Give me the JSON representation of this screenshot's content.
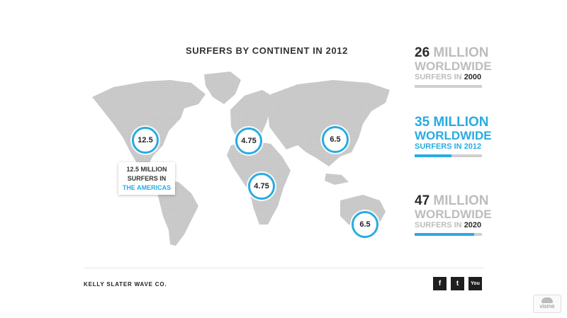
{
  "chart_data": {
    "type": "map",
    "title": "SURFERS BY CONTINENT IN 2012",
    "regions": [
      {
        "name": "North America",
        "value": "12.5"
      },
      {
        "name": "Europe",
        "value": "4.75"
      },
      {
        "name": "Asia",
        "value": "6.5"
      },
      {
        "name": "Africa",
        "value": "4.75"
      },
      {
        "name": "Australia",
        "value": "6.5"
      }
    ],
    "callout": {
      "line1": "12.5 MILLION",
      "line2": "SURFERS IN",
      "line3": "THE AMERICAS"
    },
    "stats": [
      {
        "number": "26",
        "unit": "MILLION",
        "line2": "WORLDWIDE",
        "line3_a": "SURFERS IN",
        "year": "2000",
        "progress": 0.0,
        "highlight": false
      },
      {
        "number": "35",
        "unit": "MILLION",
        "line2": "WORLDWIDE",
        "line3_a": "SURFERS IN",
        "year": "2012",
        "progress": 0.55,
        "highlight": true
      },
      {
        "number": "47",
        "unit": "MILLION",
        "line2": "WORLDWIDE",
        "line3_a": "SURFERS IN",
        "year": "2020",
        "progress": 0.88,
        "highlight": false
      }
    ]
  },
  "footer": {
    "brand": "KELLY SLATER WAVE CO."
  },
  "social": [
    {
      "icon": "facebook-icon",
      "glyph": "f"
    },
    {
      "icon": "twitter-icon",
      "glyph": "t"
    },
    {
      "icon": "youtube-icon",
      "glyph": "You"
    }
  ],
  "watermark": {
    "text": "visme"
  },
  "colors": {
    "accent": "#29abe2",
    "map": "#c8c8c8",
    "muted": "#bdbdbd",
    "dark": "#2a2a2a"
  }
}
